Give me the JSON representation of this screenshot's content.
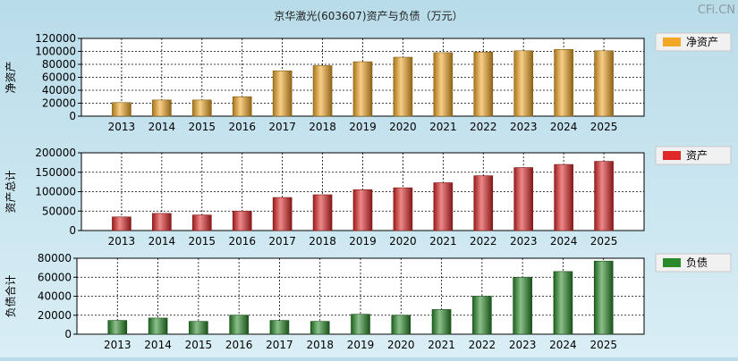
{
  "title": "京华激光(603607)资产与负债（万元）",
  "watermark": "CFi.CN",
  "chart_data": [
    {
      "type": "bar",
      "ylabel": "净资产",
      "legend": "净资产",
      "legend_position": "right",
      "color": "#f2a826",
      "categories": [
        "2013",
        "2014",
        "2015",
        "2016",
        "2017",
        "2018",
        "2019",
        "2020",
        "2021",
        "2022",
        "2023",
        "2024",
        "2025"
      ],
      "values": [
        21000,
        25000,
        25000,
        30000,
        70000,
        78000,
        84000,
        91000,
        98000,
        99000,
        101000,
        103000,
        101000
      ],
      "ylim": [
        0,
        120000
      ],
      "yticks": [
        0,
        20000,
        40000,
        60000,
        80000,
        100000,
        120000
      ],
      "grid": true
    },
    {
      "type": "bar",
      "ylabel": "资产总计",
      "legend": "资产",
      "legend_position": "right",
      "color": "#e02828",
      "categories": [
        "2013",
        "2014",
        "2015",
        "2016",
        "2017",
        "2018",
        "2019",
        "2020",
        "2021",
        "2022",
        "2023",
        "2024",
        "2025"
      ],
      "values": [
        35000,
        44000,
        40000,
        50000,
        85000,
        92000,
        105000,
        110000,
        123000,
        141000,
        162000,
        170000,
        178000
      ],
      "ylim": [
        0,
        200000
      ],
      "yticks": [
        0,
        50000,
        100000,
        150000,
        200000
      ],
      "grid": true
    },
    {
      "type": "bar",
      "ylabel": "负债合计",
      "legend": "负债",
      "legend_position": "right",
      "color": "#2a8a2a",
      "categories": [
        "2013",
        "2014",
        "2015",
        "2016",
        "2017",
        "2018",
        "2019",
        "2020",
        "2021",
        "2022",
        "2023",
        "2024",
        "2025"
      ],
      "values": [
        14500,
        17000,
        13500,
        20000,
        14500,
        13500,
        21000,
        20000,
        26000,
        40000,
        60000,
        66000,
        77000
      ],
      "ylim": [
        0,
        80000
      ],
      "yticks": [
        0,
        20000,
        40000,
        60000,
        80000
      ],
      "grid": true
    }
  ]
}
